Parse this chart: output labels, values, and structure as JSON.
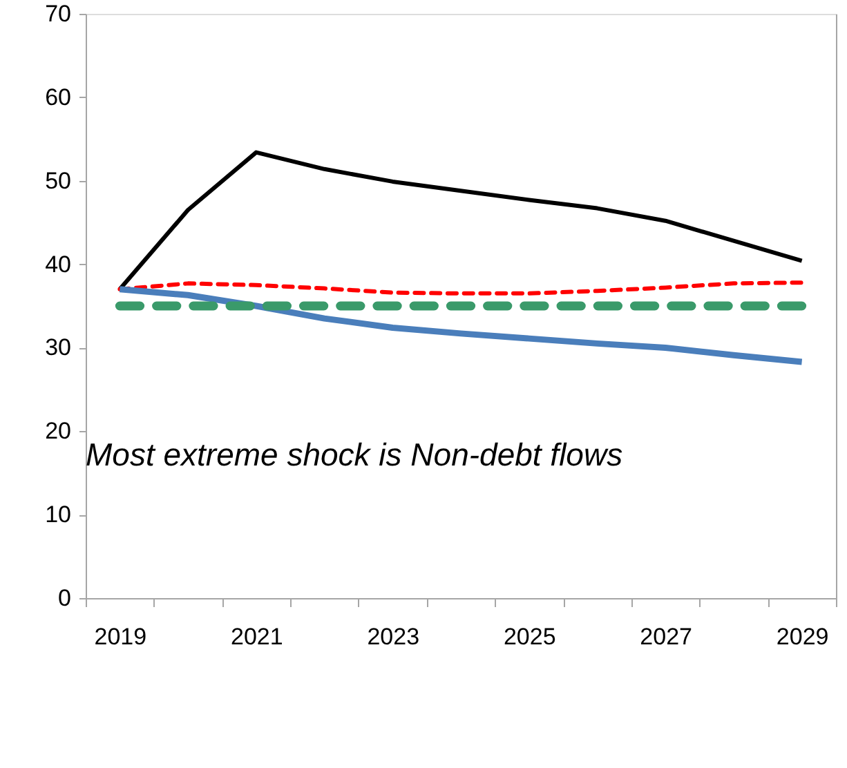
{
  "chart_data": {
    "type": "line",
    "categories": [
      "2019",
      null,
      "2021",
      null,
      "2023",
      null,
      "2025",
      null,
      "2027",
      null,
      "2029"
    ],
    "series": [
      {
        "color": "#000000",
        "line_style": "solid",
        "values": [
          37.0,
          46.5,
          53.4,
          51.4,
          49.9,
          48.8,
          47.7,
          46.7,
          45.2,
          42.8,
          40.4
        ]
      },
      {
        "color": "#ff0000",
        "line_style": "dashed",
        "values": [
          37.0,
          37.7,
          37.5,
          37.1,
          36.6,
          36.5,
          36.5,
          36.8,
          37.2,
          37.7,
          37.8
        ]
      },
      {
        "color": "#4a7ebb",
        "line_style": "solid",
        "values": [
          37.0,
          36.3,
          35.0,
          33.5,
          32.4,
          31.7,
          31.1,
          30.5,
          30.0,
          29.1,
          28.3
        ]
      },
      {
        "color": "#3a9a6a",
        "line_style": "dashed",
        "values": [
          35,
          35,
          35,
          35,
          35,
          35,
          35,
          35,
          35,
          35,
          35
        ]
      }
    ],
    "ylim": [
      0,
      70
    ],
    "yticks": [
      0,
      10,
      20,
      30,
      40,
      50,
      60,
      70
    ],
    "grid": false,
    "marker": "none",
    "annotations": [
      "Most extreme shock is Non-debt flows"
    ]
  }
}
